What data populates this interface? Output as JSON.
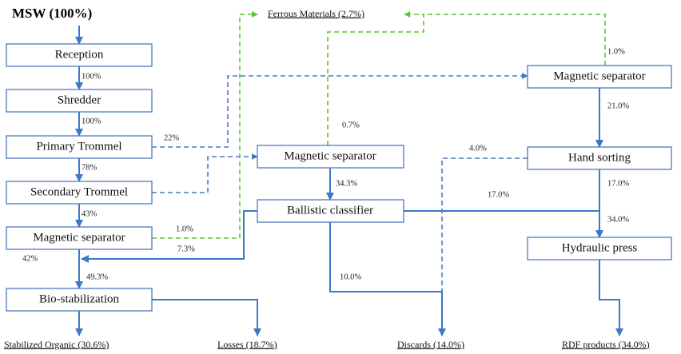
{
  "source": "MSW (100%)",
  "nodes": [
    {
      "label": "Reception"
    },
    {
      "label": "Shredder"
    },
    {
      "label": "Primary Trommel"
    },
    {
      "label": "Secondary Trommel"
    },
    {
      "label": "Magnetic separator"
    },
    {
      "label": "Bio-stabilization"
    },
    {
      "label": "Magnetic separator"
    },
    {
      "label": "Ballistic classifier"
    },
    {
      "label": "Magnetic separator"
    },
    {
      "label": "Hand sorting"
    },
    {
      "label": "Hydraulic press"
    }
  ],
  "outputs": [
    "Ferrous Materials (2.7%)",
    "Stabilized Organic (30.6%)",
    "Losses (18.7%)",
    "Discards (14.0%)",
    "RDF products (34.0%)"
  ],
  "flows": [
    "100%",
    "100%",
    "22%",
    "78%",
    "43%",
    "1.0%",
    "7.3%",
    "42%",
    "49.3%",
    "0.7%",
    "34.3%",
    "4.0%",
    "17.0%",
    "1.0%",
    "21.0%",
    "17.0%",
    "34.0%",
    "10.0%"
  ]
}
